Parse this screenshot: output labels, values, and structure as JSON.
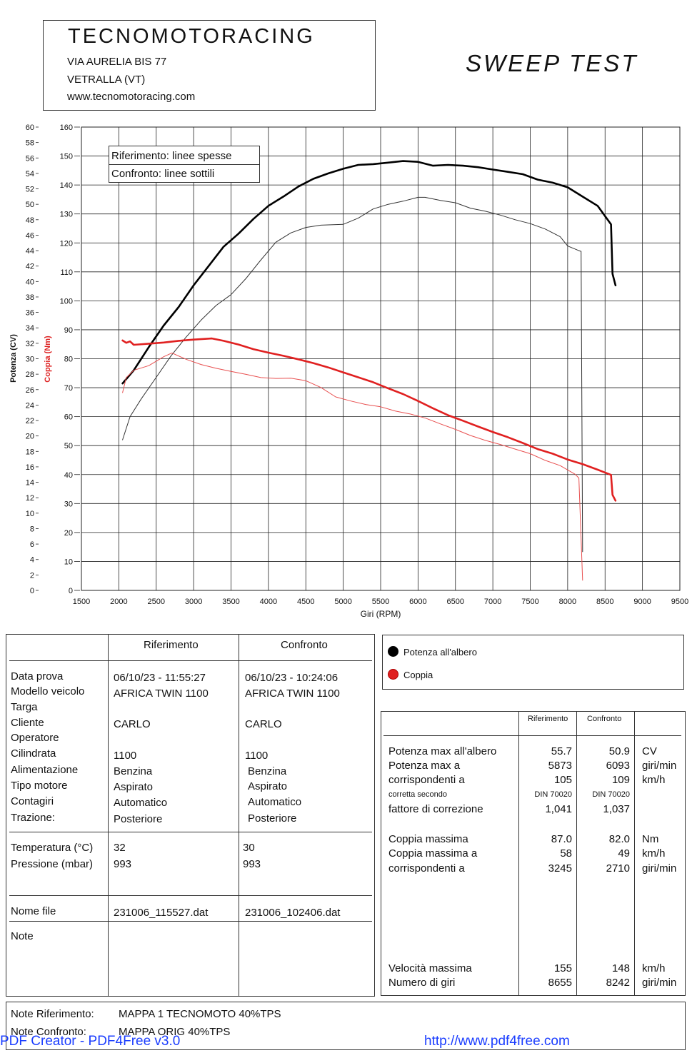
{
  "header": {
    "company": "TECNOMOTORACING",
    "address1": "VIA AURELIA BIS 77",
    "address2": "VETRALLA (VT)",
    "website": "www.tecnomotoracing.com",
    "test_title": "SWEEP TEST"
  },
  "chart_data": {
    "type": "line",
    "xlabel": "Giri (RPM)",
    "ylabel_left": "Potenza (CV)",
    "ylabel_right": "Coppia (Nm)",
    "xlim": [
      1500,
      9500
    ],
    "x_ticks": [
      1500,
      2000,
      2500,
      3000,
      3500,
      4000,
      4500,
      5000,
      5500,
      6000,
      6500,
      7000,
      7500,
      8000,
      8500,
      9000,
      9500
    ],
    "power_lim": [
      0,
      60
    ],
    "power_ticks": [
      0,
      2,
      4,
      6,
      8,
      10,
      12,
      14,
      16,
      18,
      20,
      22,
      24,
      26,
      28,
      30,
      32,
      34,
      36,
      38,
      40,
      42,
      44,
      46,
      48,
      50,
      52,
      54,
      56,
      58,
      60
    ],
    "torque_lim": [
      0,
      160
    ],
    "torque_ticks": [
      0,
      10,
      20,
      30,
      40,
      50,
      60,
      70,
      80,
      90,
      100,
      110,
      120,
      130,
      140,
      150,
      160
    ],
    "grid": true,
    "legend_box": [
      "Riferimento: linee spesse",
      "Confronto: linee sottili"
    ],
    "series": [
      {
        "name": "Potenza all'albero",
        "run": "Riferimento",
        "axis": "power",
        "color": "#000000",
        "width": 2.6,
        "x": [
          2050,
          2200,
          2400,
          2600,
          2800,
          3000,
          3200,
          3400,
          3600,
          3800,
          4000,
          4200,
          4400,
          4600,
          4800,
          5000,
          5200,
          5400,
          5600,
          5800,
          6000,
          6200,
          6400,
          6600,
          6800,
          7000,
          7200,
          7400,
          7600,
          7800,
          8000,
          8200,
          8400,
          8580,
          8600,
          8640
        ],
        "y": [
          26.8,
          28.5,
          31.5,
          34.3,
          36.7,
          39.5,
          42.0,
          44.5,
          46.2,
          48.1,
          49.8,
          51.0,
          52.3,
          53.3,
          54.0,
          54.6,
          55.1,
          55.2,
          55.4,
          55.6,
          55.5,
          55.0,
          55.1,
          55.0,
          54.8,
          54.5,
          54.2,
          53.9,
          53.2,
          52.8,
          52.2,
          51.0,
          49.8,
          47.4,
          41.0,
          39.5
        ]
      },
      {
        "name": "Potenza all'albero",
        "run": "Confronto",
        "axis": "power",
        "color": "#333333",
        "width": 1.0,
        "x": [
          2050,
          2150,
          2300,
          2500,
          2700,
          2900,
          3100,
          3300,
          3500,
          3700,
          3900,
          4100,
          4300,
          4500,
          4700,
          5000,
          5200,
          5400,
          5600,
          5800,
          6000,
          6093,
          6300,
          6500,
          6700,
          6900,
          7100,
          7300,
          7500,
          7700,
          7900,
          8000,
          8150,
          8180,
          8200
        ],
        "y": [
          19.5,
          22.5,
          24.8,
          27.6,
          30.4,
          32.8,
          35.0,
          36.9,
          38.3,
          40.4,
          42.8,
          45.1,
          46.3,
          47.0,
          47.3,
          47.4,
          48.2,
          49.4,
          50.0,
          50.4,
          50.9,
          50.9,
          50.5,
          50.2,
          49.5,
          49.1,
          48.6,
          48.0,
          47.5,
          46.8,
          45.8,
          44.6,
          44.0,
          43.9,
          5.0
        ]
      },
      {
        "name": "Coppia",
        "run": "Riferimento",
        "axis": "torque",
        "color": "#e02020",
        "width": 2.6,
        "x": [
          2050,
          2100,
          2150,
          2200,
          2400,
          2600,
          2800,
          3000,
          3245,
          3400,
          3600,
          3800,
          4000,
          4200,
          4400,
          4600,
          4800,
          5000,
          5200,
          5400,
          5600,
          5800,
          6000,
          6200,
          6400,
          6600,
          6800,
          7000,
          7200,
          7400,
          7600,
          7800,
          8000,
          8200,
          8400,
          8580,
          8600,
          8640
        ],
        "y": [
          86.3,
          85.5,
          86.0,
          84.8,
          85.2,
          85.6,
          86.2,
          86.6,
          87.0,
          86.2,
          84.9,
          83.3,
          82.1,
          81.0,
          79.8,
          78.5,
          77.0,
          75.3,
          73.6,
          71.9,
          69.8,
          67.8,
          65.4,
          62.9,
          60.5,
          58.6,
          56.6,
          54.7,
          52.9,
          50.9,
          48.8,
          47.2,
          45.2,
          43.6,
          41.7,
          39.9,
          33.0,
          31.0
        ]
      },
      {
        "name": "Coppia",
        "run": "Confronto",
        "axis": "torque",
        "color": "#e85050",
        "width": 1.0,
        "x": [
          2050,
          2100,
          2200,
          2400,
          2600,
          2710,
          2900,
          3100,
          3300,
          3500,
          3700,
          3900,
          4100,
          4300,
          4500,
          4700,
          4900,
          5100,
          5300,
          5500,
          5700,
          5900,
          6100,
          6300,
          6500,
          6700,
          6900,
          7100,
          7300,
          7500,
          7700,
          7900,
          8100,
          8150,
          8200
        ],
        "y": [
          68.3,
          73.5,
          76.0,
          77.6,
          80.7,
          82.0,
          79.8,
          78.0,
          76.7,
          75.6,
          74.6,
          73.5,
          73.2,
          73.3,
          72.4,
          70.1,
          66.8,
          65.4,
          64.2,
          63.4,
          61.9,
          60.9,
          59.5,
          57.5,
          55.6,
          53.5,
          51.8,
          50.4,
          48.8,
          47.2,
          44.9,
          43.1,
          40.1,
          38.8,
          3.5
        ]
      }
    ]
  },
  "legend": {
    "power": "Potenza all'albero",
    "torque": "Coppia",
    "power_color": "#000000",
    "torque_color": "#e02020"
  },
  "info_table": {
    "col_ref": "Riferimento",
    "col_conf": "Confronto",
    "group1_labels": [
      "Data prova",
      "Modello veicolo",
      "Targa",
      "Cliente",
      "Operatore",
      "Cilindrata",
      "Alimentazione",
      "Tipo motore",
      "Contagiri",
      "Trazione:"
    ],
    "ref": {
      "date": "06/10/23 - 11:55:27",
      "model": "AFRICA TWIN 1100",
      "client": "CARLO",
      "cc": "1100",
      "fuel": "Benzina",
      "engine": "Aspirato",
      "tach": "Automatico",
      "drive": "Posteriore",
      "temp": "32",
      "pressure": "993",
      "file": "231006_115527.dat"
    },
    "conf": {
      "date": "06/10/23 - 10:24:06",
      "model": "AFRICA TWIN 1100",
      "client": "CARLO",
      "cc": "1100",
      "fuel": "Benzina",
      "engine": "Aspirato",
      "tach": "Automatico",
      "drive": "Posteriore",
      "temp": "30",
      "pressure": "993",
      "file": "231006_102406.dat"
    },
    "temp_label": "Temperatura (°C)",
    "pressure_label": "Pressione (mbar)",
    "file_label": "Nome file",
    "notes_label": "Note"
  },
  "results": {
    "col_ref": "Riferimento",
    "col_conf": "Confronto",
    "rows1": [
      {
        "label": "Potenza max all'albero",
        "ref": "55.7",
        "conf": "50.9",
        "unit": "CV"
      },
      {
        "label": "Potenza max a",
        "ref": "5873",
        "conf": "6093",
        "unit": "giri/min"
      },
      {
        "label": "corrispondenti a",
        "ref": "105",
        "conf": "109",
        "unit": "km/h"
      },
      {
        "label": "corretta secondo",
        "ref": "DIN 70020",
        "conf": "DIN 70020",
        "unit": ""
      },
      {
        "label": "fattore di correzione",
        "ref": "1,041",
        "conf": "1,037",
        "unit": ""
      }
    ],
    "rows2": [
      {
        "label": "Coppia massima",
        "ref": "87.0",
        "conf": "82.0",
        "unit": "Nm"
      },
      {
        "label": "Coppia massima a",
        "ref": "58",
        "conf": "49",
        "unit": "km/h"
      },
      {
        "label": "corrispondenti a",
        "ref": "3245",
        "conf": "2710",
        "unit": "giri/min"
      }
    ],
    "rows3": [
      {
        "label": "Velocità massima",
        "ref": "155",
        "conf": "148",
        "unit": "km/h"
      },
      {
        "label": "Numero di giri",
        "ref": "8655",
        "conf": "8242",
        "unit": "giri/min"
      }
    ]
  },
  "notes": {
    "ref_label": "Note Riferimento:",
    "ref_value": "MAPPA 1 TECNOMOTO 40%TPS",
    "conf_label": "Note Confronto:",
    "conf_value": "MAPPA ORIG 40%TPS"
  },
  "watermark": {
    "left": "PDF Creator - PDF4Free v3.0",
    "right": "http://www.pdf4free.com"
  }
}
